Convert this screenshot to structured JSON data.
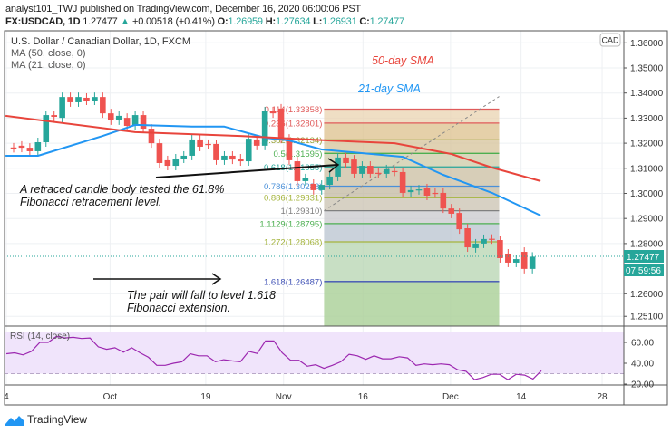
{
  "header": {
    "line1": "analyst101_TWJ published on TradingView.com, December 16, 2020 06:00:06 PST",
    "symbol": "FX:USDCAD, 1D",
    "last": "1.27477",
    "change": "+0.00518 (+0.41%)",
    "o_label": "O:",
    "o": "1.26959",
    "h_label": "H:",
    "h": "1.27634",
    "l_label": "L:",
    "l": "1.26931",
    "c_label": "C:",
    "c": "1.27477"
  },
  "legend": {
    "title": "U.S. Dollar / Canadian Dollar, 1D, FXCM",
    "ma50": "MA (50, close, 0)",
    "ma21": "MA (21, close, 0)",
    "rsi": "RSI (14, close)"
  },
  "currency_badge": "CAD",
  "price_tag": {
    "price": "1.27477",
    "countdown": "07:59:56"
  },
  "annotations": {
    "sma50": "50-day SMA",
    "sma21": "21-day SMA",
    "retrace_1": "A retraced candle body tested the 61.8%",
    "retrace_2": "Fibonacci retracement level.",
    "fall_1": "The pair will fall to level 1.618",
    "fall_2": "Fibonacci extension."
  },
  "footer": {
    "brand": "TradingView"
  },
  "colors": {
    "up": "#26a69a",
    "down": "#ef5350",
    "ma50": "#e8453c",
    "ma21": "#2196f3",
    "rsi": "#9c27b0"
  },
  "chart_data": {
    "type": "candlestick",
    "price_axis": {
      "ticks": [
        "1.36000",
        "1.35000",
        "1.34000",
        "1.33000",
        "1.32000",
        "1.31000",
        "1.30000",
        "1.29000",
        "1.28000",
        "1.26000",
        "1.25100"
      ],
      "range": [
        1.251,
        1.364
      ]
    },
    "time_axis": {
      "ticks": [
        {
          "label": "4",
          "bar": -0.9
        },
        {
          "label": "Oct",
          "bar": 11.9
        },
        {
          "label": "19",
          "bar": 23.7
        },
        {
          "label": "Nov",
          "bar": 33.3
        },
        {
          "label": "16",
          "bar": 43.1
        },
        {
          "label": "Dec",
          "bar": 53.9
        },
        {
          "label": "14",
          "bar": 62.6
        },
        {
          "label": "28",
          "bar": 72.6
        }
      ]
    },
    "candles_open_close": [
      [
        1.3183,
        1.3181
      ],
      [
        1.319,
        1.3182
      ],
      [
        1.3182,
        1.3168
      ],
      [
        1.3168,
        1.3204
      ],
      [
        1.3204,
        1.3312
      ],
      [
        1.3312,
        1.3305
      ],
      [
        1.3301,
        1.3384
      ],
      [
        1.3384,
        1.3363
      ],
      [
        1.3363,
        1.3384
      ],
      [
        1.3381,
        1.337
      ],
      [
        1.337,
        1.3384
      ],
      [
        1.3384,
        1.3319
      ],
      [
        1.3319,
        1.3291
      ],
      [
        1.3291,
        1.3309
      ],
      [
        1.3301,
        1.3269
      ],
      [
        1.3269,
        1.3312
      ],
      [
        1.3312,
        1.3258
      ],
      [
        1.3258,
        1.32
      ],
      [
        1.32,
        1.3121
      ],
      [
        1.3132,
        1.311
      ],
      [
        1.311,
        1.3139
      ],
      [
        1.3139,
        1.315
      ],
      [
        1.315,
        1.3215
      ],
      [
        1.3215,
        1.3186
      ],
      [
        1.3197,
        1.3195
      ],
      [
        1.3197,
        1.3132
      ],
      [
        1.3132,
        1.315
      ],
      [
        1.315,
        1.3135
      ],
      [
        1.3139,
        1.3128
      ],
      [
        1.3128,
        1.3218
      ],
      [
        1.3215,
        1.319
      ],
      [
        1.319,
        1.3327
      ],
      [
        1.3327,
        1.3319
      ],
      [
        1.3338,
        1.3218
      ],
      [
        1.3218,
        1.3132
      ],
      [
        1.3128,
        1.3049
      ],
      [
        1.3049,
        1.306
      ],
      [
        1.3038,
        1.3013
      ],
      [
        1.3013,
        1.3034
      ],
      [
        1.3034,
        1.3067
      ],
      [
        1.3067,
        1.3143
      ],
      [
        1.3143,
        1.3121
      ],
      [
        1.3135,
        1.3078
      ],
      [
        1.3078,
        1.311
      ],
      [
        1.311,
        1.3078
      ],
      [
        1.3082,
        1.308
      ],
      [
        1.3078,
        1.3096
      ],
      [
        1.3089,
        1.3087
      ],
      [
        1.3085,
        1.3002
      ],
      [
        1.3005,
        1.3013
      ],
      [
        1.3013,
        1.3016
      ],
      [
        1.302,
        1.2991
      ],
      [
        1.3002,
        1.3
      ],
      [
        1.3002,
        1.294
      ],
      [
        1.294,
        1.2919
      ],
      [
        1.2922,
        1.2857
      ],
      [
        1.2861,
        1.2785
      ],
      [
        1.2782,
        1.28
      ],
      [
        1.28,
        1.2818
      ],
      [
        1.2819,
        1.2817
      ],
      [
        1.2814,
        1.2742
      ],
      [
        1.276,
        1.2724
      ],
      [
        1.2724,
        1.2738
      ],
      [
        1.2767,
        1.2699
      ],
      [
        1.2699,
        1.27477
      ]
    ],
    "ma50_points": [
      [
        -1,
        1.3309
      ],
      [
        15,
        1.3244
      ],
      [
        28,
        1.3229
      ],
      [
        39,
        1.3211
      ],
      [
        47,
        1.32
      ],
      [
        54,
        1.3157
      ],
      [
        59,
        1.3103
      ],
      [
        65,
        1.3049
      ]
    ],
    "ma21_points": [
      [
        -1,
        1.315
      ],
      [
        3,
        1.315
      ],
      [
        11,
        1.3229
      ],
      [
        15,
        1.3273
      ],
      [
        22,
        1.3266
      ],
      [
        26,
        1.3266
      ],
      [
        31,
        1.3222
      ],
      [
        34,
        1.3211
      ],
      [
        38,
        1.3175
      ],
      [
        48,
        1.3146
      ],
      [
        53,
        1.3074
      ],
      [
        59,
        1.3002
      ],
      [
        65,
        1.2912
      ]
    ],
    "fibonacci": {
      "start_bar": 38.3,
      "end_bar": 59.9,
      "levels": [
        {
          "label": "0.114(1.33358)",
          "price": 1.33358,
          "color": "#e05a5a"
        },
        {
          "label": "0.236(1.32801)",
          "price": 1.32801,
          "color": "#e05a5a"
        },
        {
          "label": "0.382(1.32134)",
          "price": 1.32134,
          "color": "#9aa43c"
        },
        {
          "label": "0.5(1.31595)",
          "price": 1.31595,
          "color": "#4caf50"
        },
        {
          "label": "0.618(1.31055)",
          "price": 1.31055,
          "color": "#26a69a"
        },
        {
          "label": "0.786(1.30288)",
          "price": 1.30288,
          "color": "#4a90d9"
        },
        {
          "label": "0.886(1.29831)",
          "price": 1.29831,
          "color": "#a4b43c"
        },
        {
          "label": "1(1.29310)",
          "price": 1.2931,
          "color": "#808080"
        },
        {
          "label": "1.1129(1.28795)",
          "price": 1.28795,
          "color": "#4caf50"
        },
        {
          "label": "1.272(1.28068)",
          "price": 1.28068,
          "color": "#a4b43c"
        },
        {
          "label": "1.618(1.26487)",
          "price": 1.26487,
          "color": "#3f51b5"
        }
      ]
    },
    "rsi": {
      "axis_ticks": [
        "60.00",
        "40.00",
        "20.00"
      ],
      "band": [
        30,
        70
      ],
      "values": [
        49.1,
        50,
        48,
        51.4,
        60,
        60,
        65.7,
        64.3,
        64.9,
        63.7,
        64.3,
        55.7,
        53.4,
        54.9,
        50.6,
        54.9,
        50,
        45.7,
        38,
        38,
        40,
        41.4,
        49.1,
        47.1,
        47.1,
        41.4,
        43.4,
        42.3,
        41.4,
        51.4,
        49.4,
        61.4,
        61.4,
        50,
        42.9,
        42.9,
        37.1,
        38.6,
        35.1,
        38,
        41.4,
        48.6,
        47.1,
        43.7,
        47.1,
        44.3,
        44.3,
        46.3,
        45.1,
        38,
        39.4,
        38.6,
        39.4,
        38.6,
        33.7,
        32.3,
        24.3,
        26.3,
        29.4,
        29.4,
        24.3,
        29.4,
        28.6,
        24.9,
        32.9
      ]
    }
  }
}
